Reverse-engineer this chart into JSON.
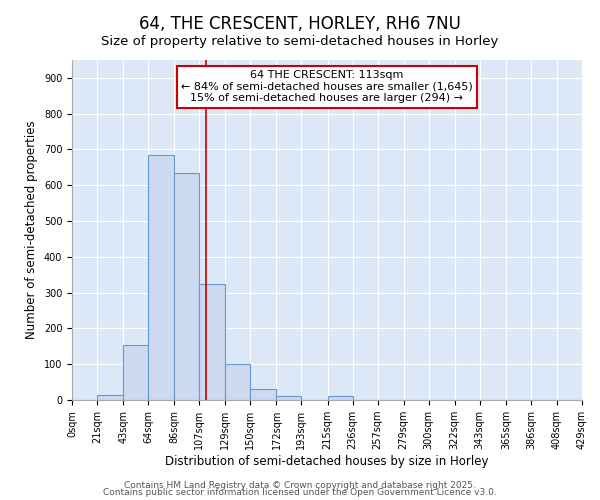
{
  "title": "64, THE CRESCENT, HORLEY, RH6 7NU",
  "subtitle": "Size of property relative to semi-detached houses in Horley",
  "xlabel": "Distribution of semi-detached houses by size in Horley",
  "ylabel": "Number of semi-detached properties",
  "bin_edges": [
    0,
    21,
    43,
    64,
    86,
    107,
    129,
    150,
    172,
    193,
    215,
    236,
    257,
    279,
    300,
    322,
    343,
    365,
    386,
    408,
    429
  ],
  "bar_heights": [
    0,
    15,
    155,
    685,
    635,
    325,
    100,
    30,
    10,
    0,
    10,
    0,
    0,
    0,
    0,
    0,
    0,
    0,
    0,
    0
  ],
  "bar_color": "#ccd9f0",
  "bar_edgecolor": "#6699cc",
  "bar_linewidth": 0.8,
  "vline_x": 113,
  "vline_color": "#cc0000",
  "vline_linewidth": 1.2,
  "annotation_title": "64 THE CRESCENT: 113sqm",
  "annotation_line1": "← 84% of semi-detached houses are smaller (1,645)",
  "annotation_line2": "15% of semi-detached houses are larger (294) →",
  "annotation_box_color": "#cc0000",
  "ylim": [
    0,
    950
  ],
  "yticks": [
    0,
    100,
    200,
    300,
    400,
    500,
    600,
    700,
    800,
    900
  ],
  "background_color": "#dce8f8",
  "fig_background_color": "#ffffff",
  "grid_color": "#ffffff",
  "footer1": "Contains HM Land Registry data © Crown copyright and database right 2025.",
  "footer2": "Contains public sector information licensed under the Open Government Licence v3.0.",
  "title_fontsize": 12,
  "subtitle_fontsize": 9.5,
  "tick_fontsize": 7,
  "ylabel_fontsize": 8.5,
  "xlabel_fontsize": 8.5,
  "annotation_fontsize": 8,
  "footer_fontsize": 6.5
}
